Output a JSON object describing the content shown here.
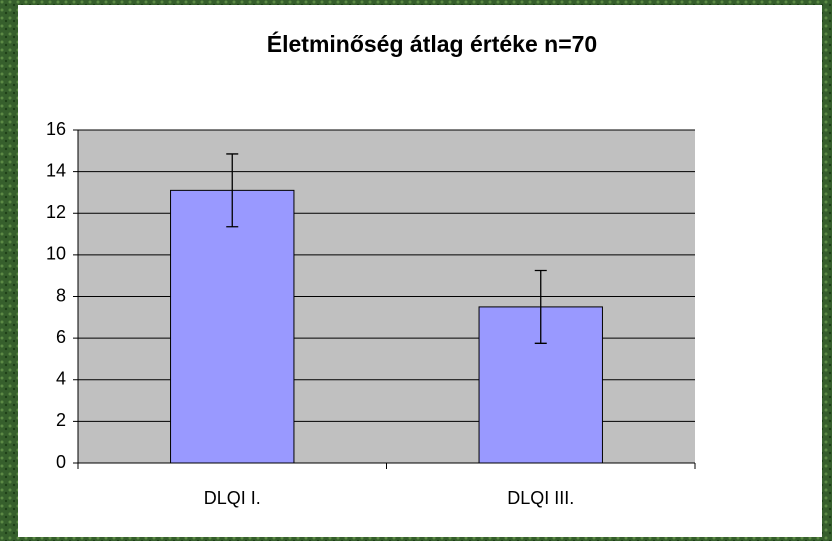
{
  "chart_data": {
    "type": "bar",
    "title": "Életminőség átlag értéke n=70",
    "categories": [
      "DLQI I.",
      "DLQI III."
    ],
    "values": [
      13.1,
      7.5
    ],
    "errors": [
      1.75,
      1.75
    ],
    "color": "#9999ff",
    "ylim": [
      0,
      16
    ],
    "yticks": [
      0,
      2,
      4,
      6,
      8,
      10,
      12,
      14,
      16
    ],
    "grid": true
  }
}
